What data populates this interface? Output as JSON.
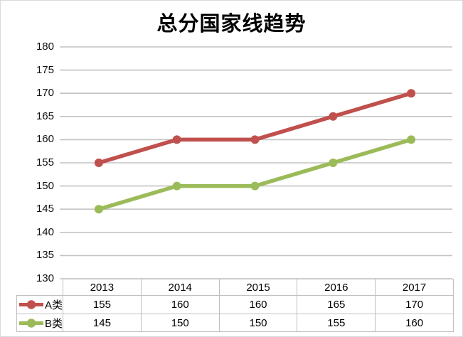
{
  "chart_data": {
    "type": "line",
    "title": "总分国家线趋势",
    "categories": [
      "2013",
      "2014",
      "2015",
      "2016",
      "2017"
    ],
    "series": [
      {
        "name": "A类",
        "color": "#C0504D",
        "values": [
          155,
          160,
          160,
          165,
          170
        ]
      },
      {
        "name": "B类",
        "color": "#9BBB59",
        "values": [
          145,
          150,
          150,
          155,
          160
        ]
      }
    ],
    "ylim": [
      130,
      180
    ],
    "yticks": [
      180,
      175,
      170,
      165,
      160,
      155,
      150,
      145,
      140,
      135,
      130
    ],
    "xlabel": "",
    "ylabel": "",
    "grid": true,
    "legend_position": "data-table-left",
    "colors": {
      "grid": "#C4C4C4",
      "table_border": "#BFBFBF",
      "text": "#000000",
      "frame_border": "#D9D9D9",
      "background": "#FFFFFF"
    }
  }
}
